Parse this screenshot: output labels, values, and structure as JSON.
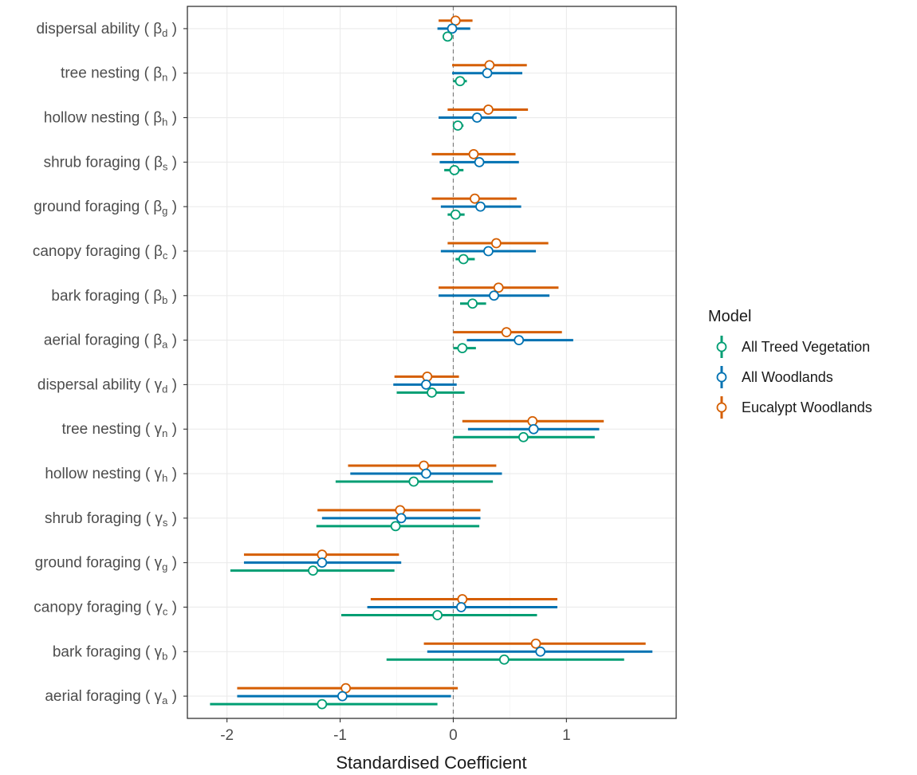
{
  "chart_data": {
    "type": "forest",
    "xlabel": "Standardised Coefficient",
    "xlim": [
      -2.35,
      1.97
    ],
    "xticks": [
      -2,
      -1,
      0,
      1
    ],
    "reference_line_x": 0,
    "grid": true,
    "legend": {
      "title": "Model",
      "position": "right"
    },
    "categories": [
      {
        "text": "dispersal ability (",
        "sym": "β",
        "sub": "d"
      },
      {
        "text": "tree nesting (",
        "sym": "β",
        "sub": "n"
      },
      {
        "text": "hollow nesting (",
        "sym": "β",
        "sub": "h"
      },
      {
        "text": "shrub foraging (",
        "sym": "β",
        "sub": "s"
      },
      {
        "text": "ground foraging (",
        "sym": "β",
        "sub": "g"
      },
      {
        "text": "canopy foraging (",
        "sym": "β",
        "sub": "c"
      },
      {
        "text": "bark foraging (",
        "sym": "β",
        "sub": "b"
      },
      {
        "text": "aerial foraging (",
        "sym": "β",
        "sub": "a"
      },
      {
        "text": "dispersal ability (",
        "sym": "γ",
        "sub": "d"
      },
      {
        "text": "tree nesting (",
        "sym": "γ",
        "sub": "n"
      },
      {
        "text": "hollow nesting (",
        "sym": "γ",
        "sub": "h"
      },
      {
        "text": "shrub foraging (",
        "sym": "γ",
        "sub": "s"
      },
      {
        "text": "ground foraging (",
        "sym": "γ",
        "sub": "g"
      },
      {
        "text": "canopy foraging (",
        "sym": "γ",
        "sub": "c"
      },
      {
        "text": "bark foraging (",
        "sym": "γ",
        "sub": "b"
      },
      {
        "text": "aerial foraging (",
        "sym": "γ",
        "sub": "a"
      }
    ],
    "series": [
      {
        "name": "Eucalypt Woodlands",
        "color": "#D55E00",
        "estimate": [
          0.02,
          0.32,
          0.31,
          0.18,
          0.19,
          0.38,
          0.4,
          0.47,
          -0.23,
          0.7,
          -0.26,
          -0.47,
          -1.16,
          0.08,
          0.73,
          -0.95
        ],
        "lower": [
          -0.13,
          -0.01,
          -0.05,
          -0.19,
          -0.19,
          -0.05,
          -0.13,
          0.0,
          -0.52,
          0.08,
          -0.93,
          -1.2,
          -1.85,
          -0.73,
          -0.26,
          -1.91
        ],
        "upper": [
          0.17,
          0.65,
          0.66,
          0.55,
          0.56,
          0.84,
          0.93,
          0.96,
          0.05,
          1.33,
          0.38,
          0.24,
          -0.48,
          0.92,
          1.7,
          0.04
        ]
      },
      {
        "name": "All Woodlands",
        "color": "#0072B2",
        "estimate": [
          -0.01,
          0.3,
          0.21,
          0.23,
          0.24,
          0.31,
          0.36,
          0.58,
          -0.24,
          0.71,
          -0.24,
          -0.46,
          -1.16,
          0.07,
          0.77,
          -0.98
        ],
        "lower": [
          -0.14,
          -0.01,
          -0.13,
          -0.12,
          -0.11,
          -0.11,
          -0.13,
          0.12,
          -0.53,
          0.13,
          -0.91,
          -1.16,
          -1.85,
          -0.76,
          -0.23,
          -1.91
        ],
        "upper": [
          0.15,
          0.61,
          0.56,
          0.58,
          0.6,
          0.73,
          0.85,
          1.06,
          0.03,
          1.29,
          0.43,
          0.24,
          -0.46,
          0.92,
          1.76,
          -0.02
        ]
      },
      {
        "name": "All Treed Vegetation",
        "color": "#009E73",
        "estimate": [
          -0.05,
          0.06,
          0.04,
          0.01,
          0.02,
          0.09,
          0.17,
          0.08,
          -0.19,
          0.62,
          -0.35,
          -0.51,
          -1.24,
          -0.14,
          0.45,
          -1.16
        ],
        "lower": [
          -0.09,
          0.0,
          0.0,
          -0.08,
          -0.05,
          0.02,
          0.06,
          0.0,
          -0.5,
          0.0,
          -1.04,
          -1.21,
          -1.97,
          -0.99,
          -0.59,
          -2.15
        ],
        "upper": [
          -0.01,
          0.12,
          0.09,
          0.09,
          0.1,
          0.19,
          0.29,
          0.2,
          0.1,
          1.25,
          0.35,
          0.23,
          -0.52,
          0.74,
          1.51,
          -0.14
        ]
      }
    ],
    "legend_order": [
      "All Treed Vegetation",
      "All Woodlands",
      "Eucalypt Woodlands"
    ]
  }
}
